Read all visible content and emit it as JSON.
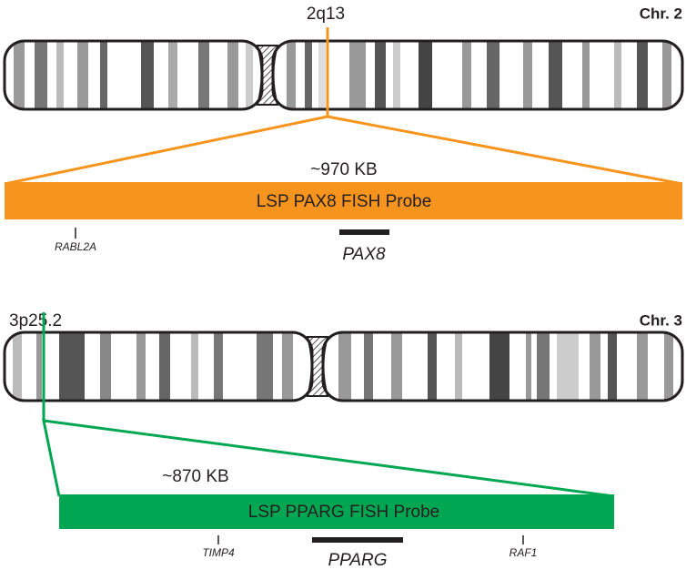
{
  "chr2": {
    "band": "2q13",
    "name": "Chr. 2",
    "size": "~970 KB",
    "probe": "LSP PAX8 FISH Probe",
    "genes": [
      "RABL2A",
      "PAX8"
    ]
  },
  "chr3": {
    "band": "3p25.2",
    "name": "Chr. 3",
    "size": "~870 KB",
    "probe": "LSP PPARG FISH Probe",
    "genes": [
      "TIMP4",
      "PPARG",
      "RAF1"
    ]
  }
}
